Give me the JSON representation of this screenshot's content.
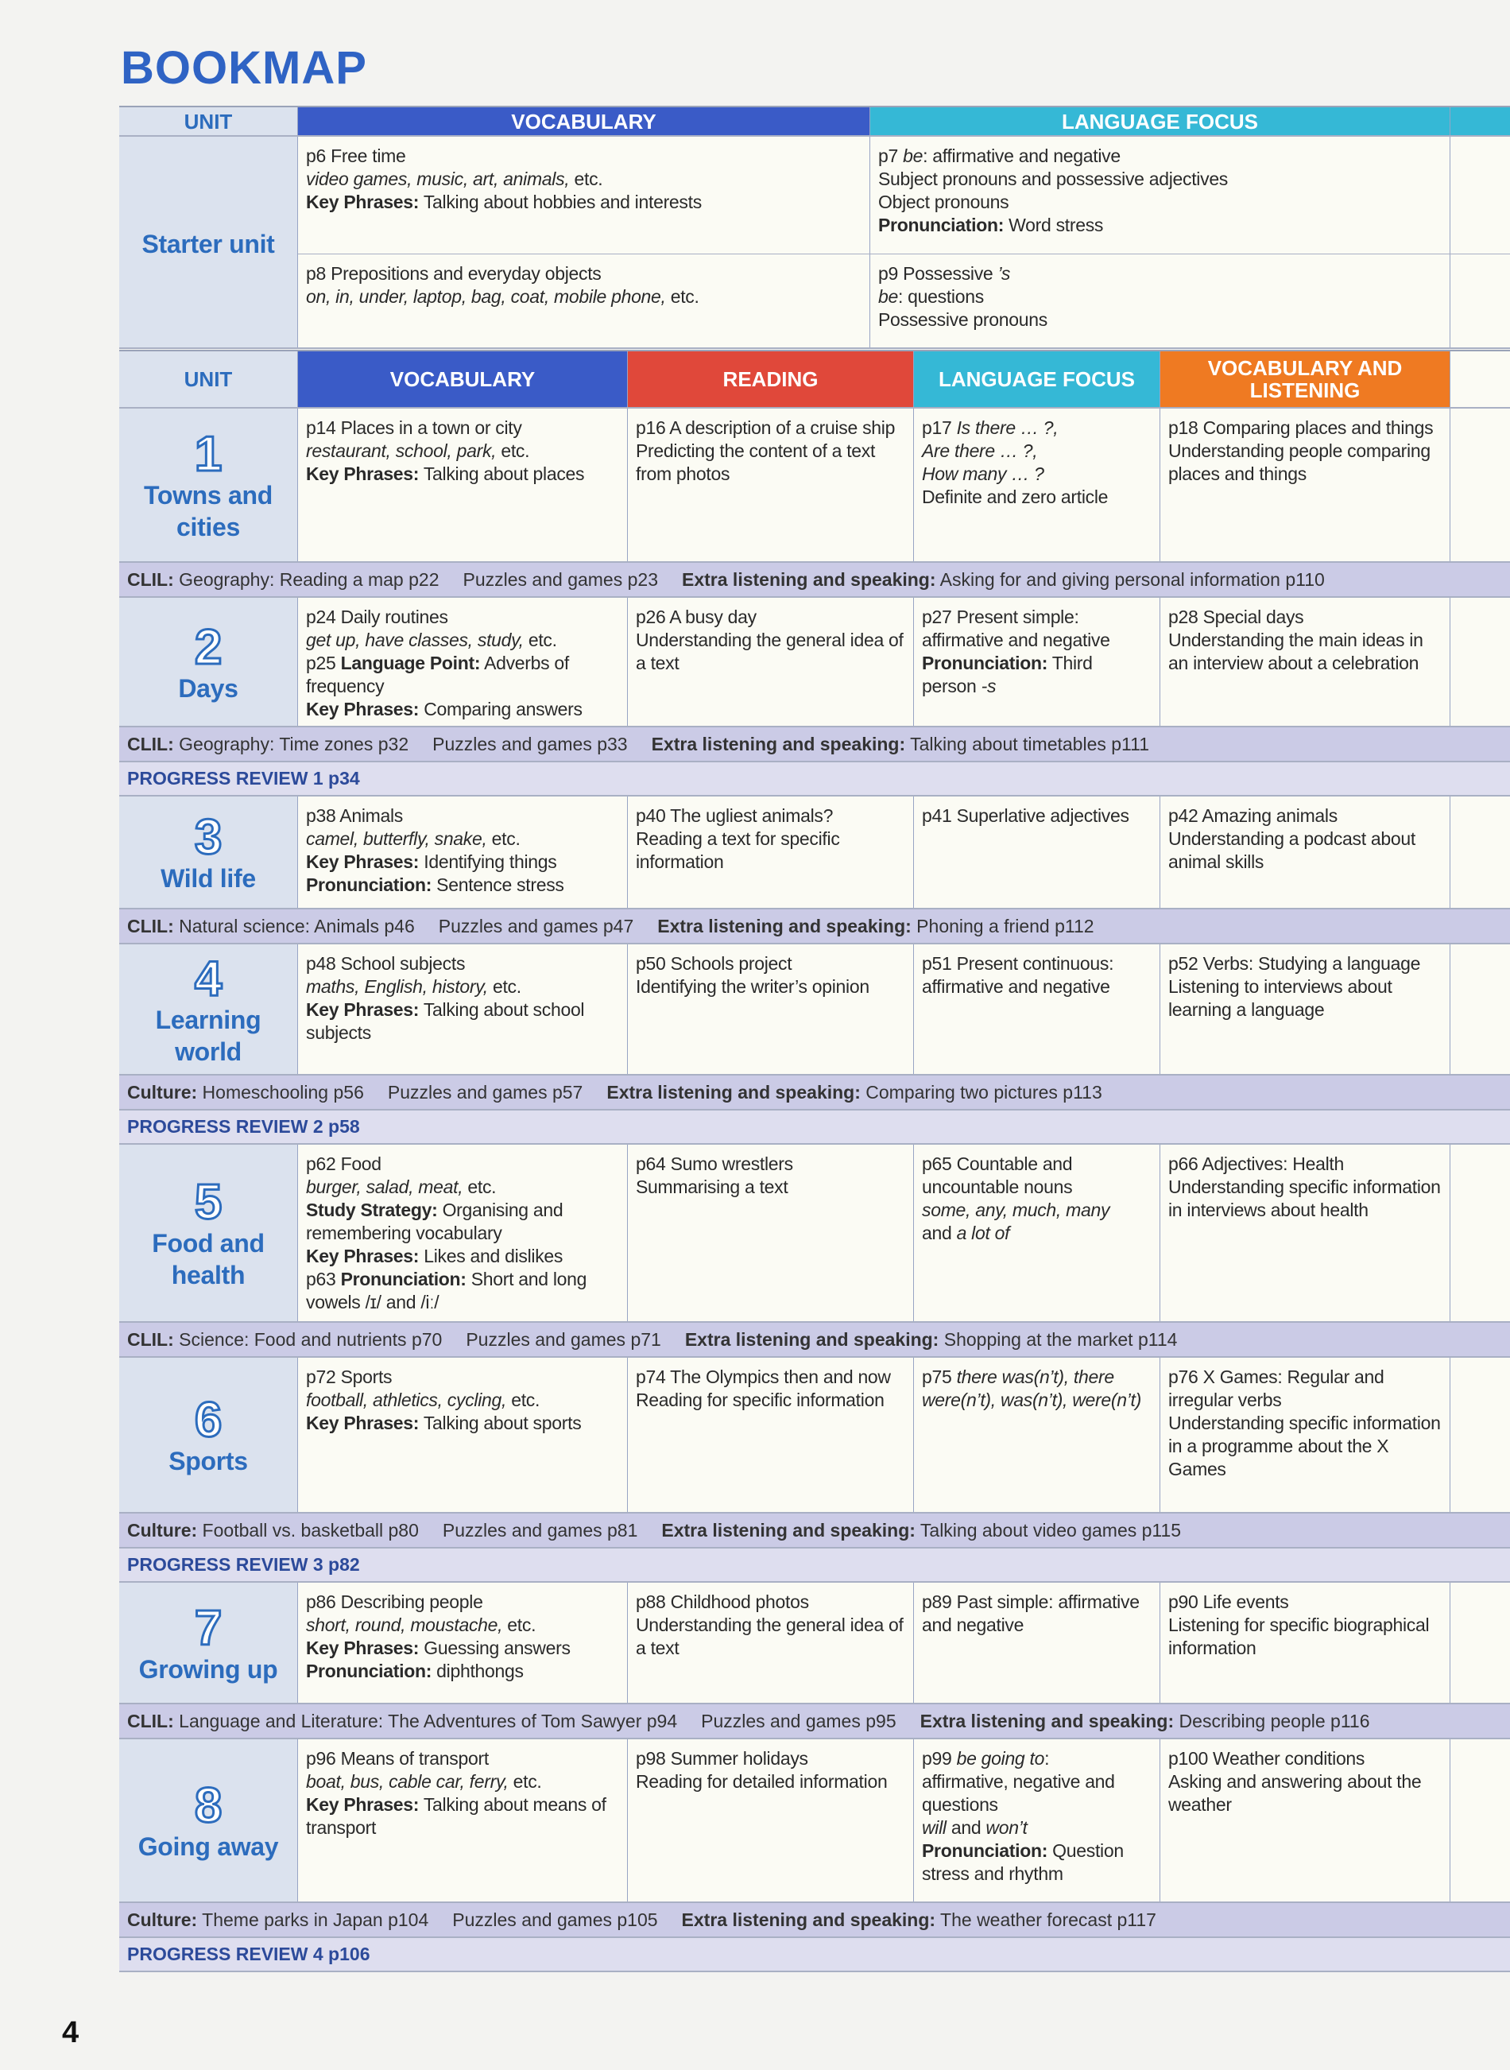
{
  "title": "BOOKMAP",
  "page_number": "4",
  "colors": {
    "vocabulary": "#3a5bc7",
    "reading": "#e0483a",
    "language_focus": "#35b8d6",
    "vocab_listening": "#ef7a22",
    "unit_text": "#2c6cbd",
    "strip": "#cbcbe6"
  },
  "starter": {
    "headers": {
      "unit": "UNIT",
      "vocabulary": "VOCABULARY",
      "language_focus": "LANGUAGE FOCUS"
    },
    "unit_name": "Starter unit",
    "rows": [
      {
        "vocabulary": [
          [
            "p6 Free time"
          ],
          [
            {
              "i": "video games, music, art, animals,"
            },
            " etc."
          ],
          [
            {
              "b": "Key Phrases:"
            },
            " Talking about hobbies and interests"
          ]
        ],
        "language_focus": [
          [
            "p7 ",
            {
              "i": "be"
            },
            ": affirmative and negative"
          ],
          [
            "Subject pronouns and possessive adjectives"
          ],
          [
            "Object pronouns"
          ],
          [
            {
              "b": "Pronunciation:"
            },
            " Word stress"
          ]
        ]
      },
      {
        "vocabulary": [
          [
            "p8 Prepositions and everyday objects"
          ],
          [
            {
              "i": "on, in, under, laptop, bag, coat, mobile phone,"
            },
            " etc."
          ]
        ],
        "language_focus": [
          [
            "p9 Possessive ",
            {
              "i": "’s"
            }
          ],
          [
            {
              "i": "be"
            },
            ": questions"
          ],
          [
            "Possessive pronouns"
          ]
        ]
      }
    ]
  },
  "main": {
    "headers": {
      "unit": "UNIT",
      "vocabulary": "VOCABULARY",
      "reading": "READING",
      "language_focus": "LANGUAGE FOCUS",
      "vocab_listening": "VOCABULARY AND LISTENING"
    },
    "units": [
      {
        "num": "1",
        "name": "Towns and cities",
        "vocabulary": [
          [
            "p14 Places in a town or city"
          ],
          [
            {
              "i": "restaurant, school, park,"
            },
            " etc."
          ],
          [
            {
              "b": "Key Phrases:"
            },
            " Talking about places"
          ]
        ],
        "reading": [
          [
            "p16 A description of a cruise ship"
          ],
          [
            "Predicting the content of a text from photos"
          ]
        ],
        "language_focus": [
          [
            "p17 ",
            {
              "i": "Is there … ?,"
            }
          ],
          [
            {
              "i": "Are there … ?,"
            }
          ],
          [
            {
              "i": "How many … ?"
            }
          ],
          [
            "Definite and zero article"
          ]
        ],
        "vocab_listening": [
          [
            "p18 Comparing places and things"
          ],
          [
            "Understanding people comparing places and things"
          ]
        ],
        "strip": [
          {
            "label": "CLIL:",
            "text": " Geography: Reading a map p22"
          },
          {
            "text": "Puzzles and games p23"
          },
          {
            "label": "Extra listening and speaking:",
            "text": " Asking for and giving personal information p110"
          }
        ]
      },
      {
        "num": "2",
        "name": "Days",
        "vocabulary": [
          [
            "p24 Daily routines"
          ],
          [
            {
              "i": "get up, have classes, study,"
            },
            " etc."
          ],
          [
            "p25 ",
            {
              "b": "Language Point:"
            },
            " Adverbs of frequency"
          ],
          [
            {
              "b": "Key Phrases:"
            },
            " Comparing answers"
          ]
        ],
        "reading": [
          [
            "p26 A busy day"
          ],
          [
            "Understanding the general idea of a text"
          ]
        ],
        "language_focus": [
          [
            "p27 Present simple: affirmative and negative"
          ],
          [
            {
              "b": "Pronunciation:"
            },
            " Third person ",
            {
              "i": "-s"
            }
          ]
        ],
        "vocab_listening": [
          [
            "p28 Special days"
          ],
          [
            "Understanding the main ideas in an interview about a celebration"
          ]
        ],
        "strip": [
          {
            "label": "CLIL:",
            "text": " Geography: Time zones p32"
          },
          {
            "text": "Puzzles and games p33"
          },
          {
            "label": "Extra listening and speaking:",
            "text": " Talking about timetables p111"
          }
        ],
        "progress": "PROGRESS REVIEW 1 p34"
      },
      {
        "num": "3",
        "name": "Wild life",
        "vocabulary": [
          [
            "p38 Animals"
          ],
          [
            {
              "i": "camel, butterfly, snake,"
            },
            " etc."
          ],
          [
            {
              "b": "Key Phrases:"
            },
            " Identifying things"
          ],
          [
            {
              "b": "Pronunciation:"
            },
            " Sentence stress"
          ]
        ],
        "reading": [
          [
            "p40 The ugliest animals?"
          ],
          [
            "Reading a text for specific information"
          ]
        ],
        "language_focus": [
          [
            "p41 Superlative adjectives"
          ]
        ],
        "vocab_listening": [
          [
            "p42 Amazing animals"
          ],
          [
            "Understanding a podcast about animal skills"
          ]
        ],
        "strip": [
          {
            "label": "CLIL:",
            "text": " Natural science: Animals p46"
          },
          {
            "text": "Puzzles and games p47"
          },
          {
            "label": "Extra listening and speaking:",
            "text": " Phoning a friend p112"
          }
        ]
      },
      {
        "num": "4",
        "name": "Learning world",
        "vocabulary": [
          [
            "p48 School subjects"
          ],
          [
            {
              "i": "maths, English, history,"
            },
            " etc."
          ],
          [
            {
              "b": "Key Phrases:"
            },
            " Talking about school subjects"
          ]
        ],
        "reading": [
          [
            "p50 Schools project"
          ],
          [
            "Identifying the writer’s opinion"
          ]
        ],
        "language_focus": [
          [
            "p51 Present continuous: affirmative and negative"
          ]
        ],
        "vocab_listening": [
          [
            "p52 Verbs: Studying a language"
          ],
          [
            "Listening to interviews about learning a language"
          ]
        ],
        "strip": [
          {
            "label": "Culture:",
            "text": " Homeschooling p56"
          },
          {
            "text": "Puzzles and games p57"
          },
          {
            "label": "Extra listening and speaking:",
            "text": " Comparing two pictures p113"
          }
        ],
        "progress": "PROGRESS REVIEW 2 p58"
      },
      {
        "num": "5",
        "name": "Food and health",
        "vocabulary": [
          [
            "p62 Food"
          ],
          [
            {
              "i": "burger, salad, meat,"
            },
            " etc."
          ],
          [
            {
              "b": "Study Strategy:"
            },
            " Organising and remembering vocabulary"
          ],
          [
            {
              "b": "Key Phrases:"
            },
            " Likes and dislikes"
          ],
          [
            "p63 ",
            {
              "b": "Pronunciation:"
            },
            " Short and long vowels /ɪ/ and /iː/"
          ]
        ],
        "reading": [
          [
            "p64 Sumo wrestlers"
          ],
          [
            "Summarising a text"
          ]
        ],
        "language_focus": [
          [
            "p65 Countable and uncountable nouns"
          ],
          [
            {
              "i": "some, any, much, many"
            }
          ],
          [
            "and ",
            {
              "i": "a lot of"
            }
          ]
        ],
        "vocab_listening": [
          [
            "p66 Adjectives: Health"
          ],
          [
            "Understanding specific information in interviews about health"
          ]
        ],
        "strip": [
          {
            "label": "CLIL:",
            "text": " Science: Food and nutrients p70"
          },
          {
            "text": "Puzzles and games p71"
          },
          {
            "label": "Extra listening and speaking:",
            "text": " Shopping at the market p114"
          }
        ]
      },
      {
        "num": "6",
        "name": "Sports",
        "vocabulary": [
          [
            "p72 Sports"
          ],
          [
            {
              "i": "football, athletics, cycling,"
            },
            " etc."
          ],
          [
            {
              "b": "Key Phrases:"
            },
            " Talking about sports"
          ]
        ],
        "reading": [
          [
            "p74 The Olympics then and now"
          ],
          [
            "Reading for specific information"
          ]
        ],
        "language_focus": [
          [
            "p75 ",
            {
              "i": "there was(n’t), there were(n’t), was(n’t), were(n’t)"
            }
          ]
        ],
        "vocab_listening": [
          [
            "p76 X Games: Regular and irregular verbs"
          ],
          [
            "Understanding specific information in a programme about the X Games"
          ]
        ],
        "strip": [
          {
            "label": "Culture:",
            "text": " Football vs. basketball p80"
          },
          {
            "text": "Puzzles and games p81"
          },
          {
            "label": "Extra listening and speaking:",
            "text": " Talking about video games p115"
          }
        ],
        "progress": "PROGRESS REVIEW 3 p82"
      },
      {
        "num": "7",
        "name": "Growing up",
        "vocabulary": [
          [
            "p86 Describing people"
          ],
          [
            {
              "i": "short, round, moustache,"
            },
            " etc."
          ],
          [
            {
              "b": "Key Phrases:"
            },
            " Guessing answers"
          ],
          [
            {
              "b": "Pronunciation:"
            },
            " diphthongs"
          ]
        ],
        "reading": [
          [
            "p88 Childhood photos"
          ],
          [
            "Understanding the general idea of a text"
          ]
        ],
        "language_focus": [
          [
            "p89 Past simple: affirmative and negative"
          ]
        ],
        "vocab_listening": [
          [
            "p90 Life events"
          ],
          [
            "Listening for specific biographical information"
          ]
        ],
        "strip": [
          {
            "label": "CLIL:",
            "text": " Language and Literature: The Adventures of Tom Sawyer p94"
          },
          {
            "text": "Puzzles and games p95"
          },
          {
            "label": "Extra listening and speaking:",
            "text": " Describing people p116"
          }
        ]
      },
      {
        "num": "8",
        "name": "Going away",
        "vocabulary": [
          [
            "p96 Means of transport"
          ],
          [
            {
              "i": "boat, bus, cable car, ferry,"
            },
            " etc."
          ],
          [
            {
              "b": "Key Phrases:"
            },
            " Talking about means of transport"
          ]
        ],
        "reading": [
          [
            "p98 Summer holidays"
          ],
          [
            "Reading for detailed information"
          ]
        ],
        "language_focus": [
          [
            "p99 ",
            {
              "i": "be going to"
            },
            ":"
          ],
          [
            "affirmative, negative and questions"
          ],
          [
            {
              "i": "will"
            },
            " and ",
            {
              "i": "won’t"
            }
          ],
          [
            {
              "b": "Pronunciation:"
            },
            " Question stress and rhythm"
          ]
        ],
        "vocab_listening": [
          [
            "p100 Weather conditions"
          ],
          [
            "Asking and answering about the weather"
          ]
        ],
        "strip": [
          {
            "label": "Culture:",
            "text": " Theme parks in Japan p104"
          },
          {
            "text": "Puzzles and games p105"
          },
          {
            "label": "Extra listening and speaking:",
            "text": " The weather forecast p117"
          }
        ],
        "progress": "PROGRESS REVIEW 4 p106"
      }
    ]
  }
}
